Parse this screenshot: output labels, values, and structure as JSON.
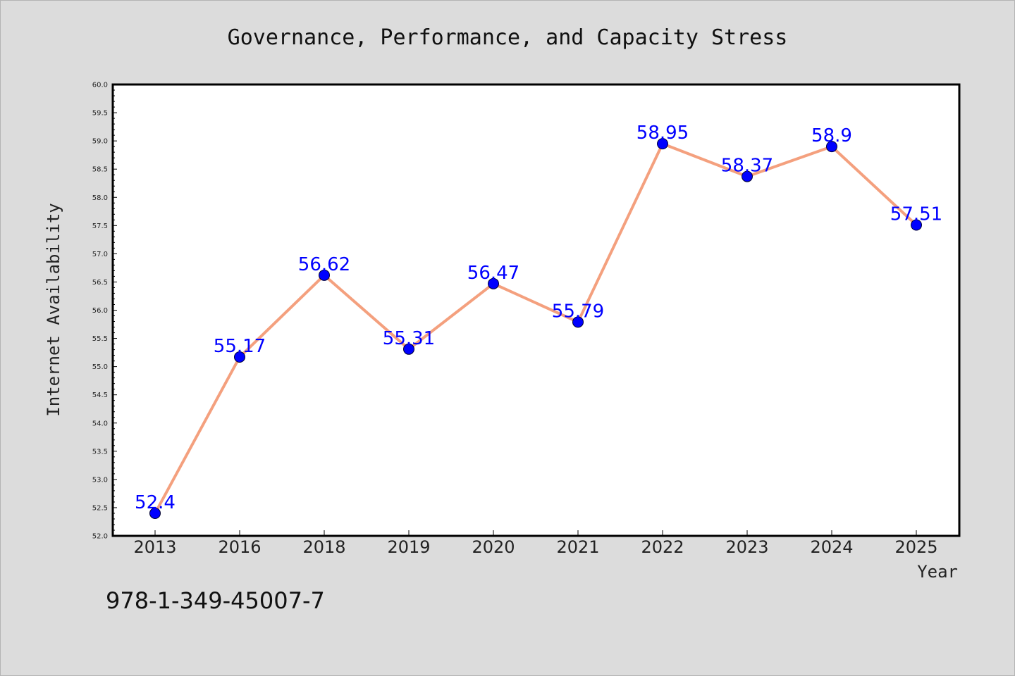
{
  "colors": {
    "background": "#dcdcdc",
    "plot_background": "#ffffff",
    "line": "#f4a07e",
    "marker": "#0000ff",
    "data_label": "#0000ff"
  },
  "footnote": "978-1-349-45007-7",
  "chart_data": {
    "type": "line",
    "title": "Governance, Performance, and Capacity Stress",
    "xlabel": "Year",
    "ylabel": "Internet Availability",
    "categories": [
      "2013",
      "2016",
      "2018",
      "2019",
      "2020",
      "2021",
      "2022",
      "2023",
      "2024",
      "2025"
    ],
    "series": [
      {
        "values": [
          52.4,
          55.17,
          56.62,
          55.31,
          56.47,
          55.79,
          58.95,
          58.37,
          58.9,
          57.51
        ],
        "labels": [
          "52.4",
          "55.17",
          "56.62",
          "55.31",
          "56.47",
          "55.79",
          "58.95",
          "58.37",
          "58.9",
          "57.51"
        ]
      }
    ],
    "ylim": [
      52.0,
      60.0
    ],
    "yticks": [
      "52.0",
      "52.5",
      "53.0",
      "53.5",
      "54.0",
      "54.5",
      "55.0",
      "55.5",
      "56.0",
      "56.5",
      "57.0",
      "57.5",
      "58.0",
      "58.5",
      "59.0",
      "59.5",
      "60.0"
    ],
    "grid": false,
    "legend": "none"
  }
}
